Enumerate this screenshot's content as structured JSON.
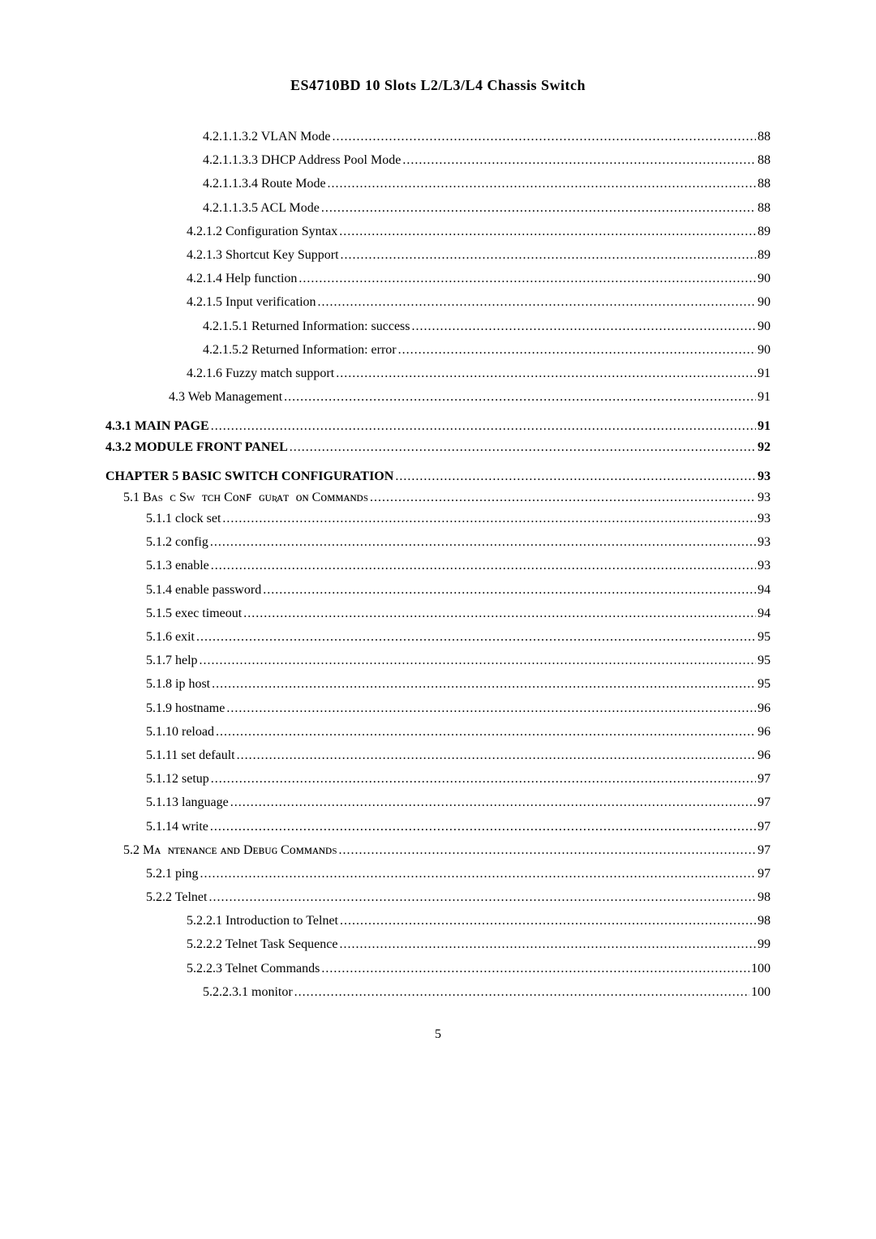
{
  "header_title": "ES4710BD 10 Slots L2/L3/L4 Chassis Switch",
  "footer_page": "5",
  "toc": [
    {
      "indent": 5,
      "label": "4.2.1.1.3.2   VLAN Mode",
      "page": "88",
      "bold": false
    },
    {
      "indent": 5,
      "label": "4.2.1.1.3.3   DHCP Address Pool Mode",
      "page": "88",
      "bold": false
    },
    {
      "indent": 5,
      "label": "4.2.1.1.3.4   Route Mode",
      "page": "88",
      "bold": false
    },
    {
      "indent": 5,
      "label": "4.2.1.1.3.5   ACL Mode",
      "page": "88",
      "bold": false
    },
    {
      "indent": 4,
      "label": "4.2.1.2   Configuration Syntax",
      "page": "89",
      "bold": false
    },
    {
      "indent": 4,
      "label": "4.2.1.3   Shortcut Key Support",
      "page": "89",
      "bold": false
    },
    {
      "indent": 4,
      "label": "4.2.1.4   Help function",
      "page": "90",
      "bold": false
    },
    {
      "indent": 4,
      "label": "4.2.1.5   Input verification",
      "page": "90",
      "bold": false
    },
    {
      "indent": 5,
      "label": "4.2.1.5.1   Returned Information: success",
      "page": "90",
      "bold": false
    },
    {
      "indent": 5,
      "label": "4.2.1.5.2   Returned Information: error",
      "page": "90",
      "bold": false
    },
    {
      "indent": 4,
      "label": "4.2.1.6   Fuzzy match support",
      "page": "91",
      "bold": false
    },
    {
      "indent": 3,
      "label": "4.3    Web Management",
      "page": "91",
      "bold": false
    },
    {
      "indent": 0,
      "label": "4.3.1    MAIN PAGE",
      "page": "91",
      "bold": true,
      "gap": "section-gap"
    },
    {
      "indent": 0,
      "label": "4.3.2    MODULE FRONT PANEL",
      "page": "92",
      "bold": true,
      "gap": "section-gap2"
    },
    {
      "indent": 0,
      "label": "CHAPTER 5   BASIC SWITCH CONFIGURATION",
      "page": "93",
      "bold": true,
      "gap": "section-gap"
    },
    {
      "indent": 1,
      "label": "5.1   Bᴀsɪᴄ Swɪᴛᴄʜ Cᴏɴꜰɪɢᴜʀᴀᴛɪᴏɴ Cᴏᴍᴍᴀɴᴅs",
      "page": "93",
      "bold": false,
      "gap": "section-gap2",
      "smallcaps": true
    },
    {
      "indent": 2,
      "label": "5.1.1     clock set",
      "page": "93",
      "bold": false
    },
    {
      "indent": 2,
      "label": "5.1.2     config",
      "page": "93",
      "bold": false
    },
    {
      "indent": 2,
      "label": "5.1.3     enable",
      "page": "93",
      "bold": false
    },
    {
      "indent": 2,
      "label": "5.1.4     enable password",
      "page": "94",
      "bold": false
    },
    {
      "indent": 2,
      "label": "5.1.5     exec timeout",
      "page": "94",
      "bold": false
    },
    {
      "indent": 2,
      "label": "5.1.6     exit",
      "page": "95",
      "bold": false
    },
    {
      "indent": 2,
      "label": "5.1.7     help",
      "page": "95",
      "bold": false
    },
    {
      "indent": 2,
      "label": "5.1.8     ip host",
      "page": "95",
      "bold": false
    },
    {
      "indent": 2,
      "label": "5.1.9     hostname",
      "page": "96",
      "bold": false
    },
    {
      "indent": 2,
      "label": "5.1.10    reload",
      "page": "96",
      "bold": false
    },
    {
      "indent": 2,
      "label": "5.1.11    set default",
      "page": "96",
      "bold": false
    },
    {
      "indent": 2,
      "label": "5.1.12    setup",
      "page": "97",
      "bold": false
    },
    {
      "indent": 2,
      "label": "5.1.13    language",
      "page": "97",
      "bold": false
    },
    {
      "indent": 2,
      "label": "5.1.14    write",
      "page": "97",
      "bold": false
    },
    {
      "indent": 1,
      "label": "5.2   Mᴀɪɴᴛᴇɴᴀɴᴄᴇ ᴀɴᴅ Dᴇʙᴜɢ Cᴏᴍᴍᴀɴᴅs",
      "page": "97",
      "bold": false,
      "smallcaps": true
    },
    {
      "indent": 2,
      "label": "5.2.1     ping",
      "page": "97",
      "bold": false
    },
    {
      "indent": 2,
      "label": "5.2.2     Telnet",
      "page": "98",
      "bold": false
    },
    {
      "indent": 4,
      "label": "5.2.2.1    Introduction to Telnet",
      "page": "98",
      "bold": false
    },
    {
      "indent": 4,
      "label": "5.2.2.2    Telnet Task Sequence",
      "page": "99",
      "bold": false
    },
    {
      "indent": 4,
      "label": "5.2.2.3    Telnet Commands",
      "page": "100",
      "bold": false
    },
    {
      "indent": 5,
      "label": "5.2.2.3.1    monitor",
      "page": "100",
      "bold": false
    }
  ]
}
